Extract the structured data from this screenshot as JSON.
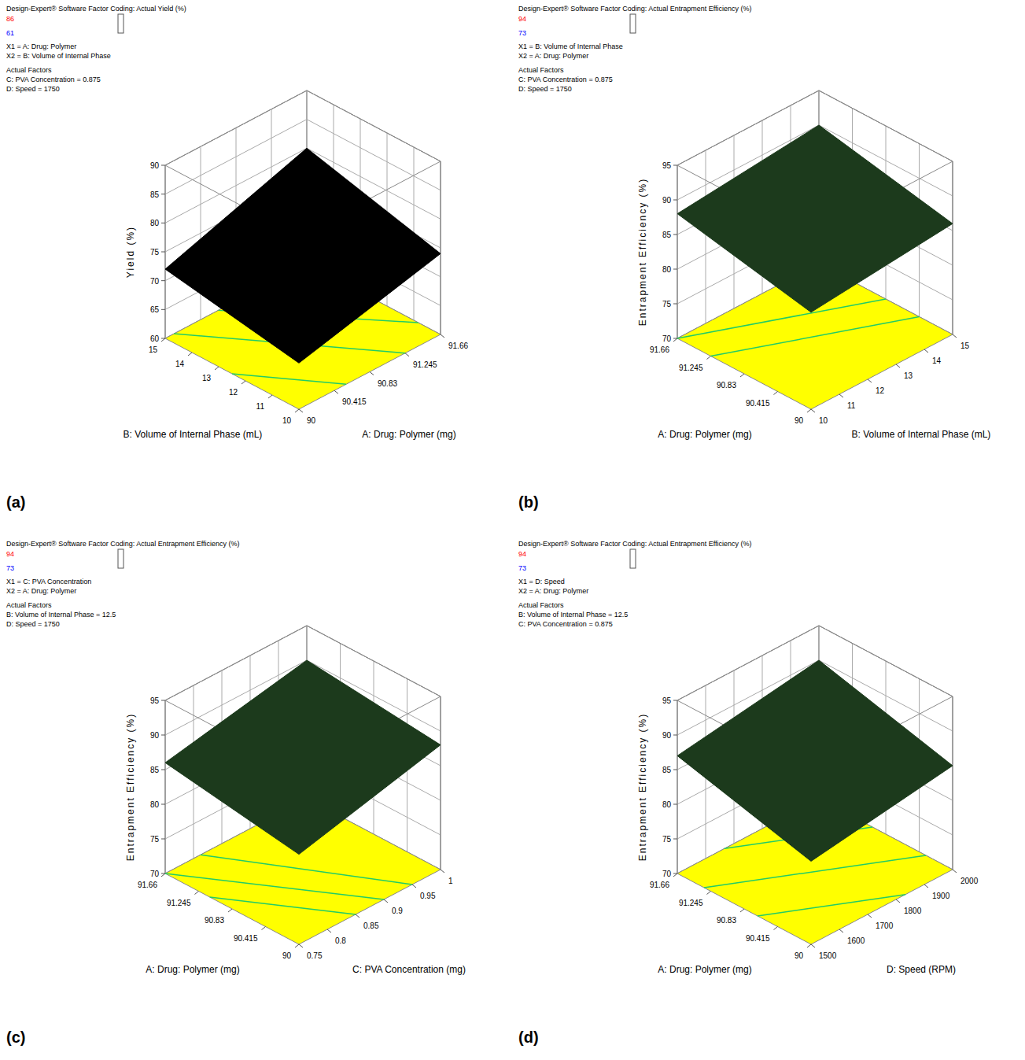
{
  "chart_data": [
    {
      "type": "surface",
      "panel": "(a)",
      "header": "Design-Expert® Software Factor Coding: Actual Yield (%)",
      "colorbar": {
        "max": 86,
        "min": 61
      },
      "x1": "X1 = A: Drug: Polymer",
      "x2": "X2 = B: Volume of Internal Phase",
      "actual_factors_title": "Actual Factors",
      "actual_factors": [
        "C: PVA Concentration = 0.875",
        "D: Speed = 1750"
      ],
      "xlabel": "A: Drug: Polymer (mg)",
      "ylabel": "B: Volume of Internal Phase (mL)",
      "zlabel": "Yield (%)",
      "xlim": [
        90,
        91.66
      ],
      "xticks": [
        90,
        90.415,
        90.83,
        91.245,
        91.66
      ],
      "ylim": [
        10,
        15
      ],
      "yticks": [
        10,
        11,
        12,
        13,
        14,
        15
      ],
      "zlim": [
        60,
        90
      ],
      "zticks": [
        60,
        65,
        70,
        75,
        80,
        85,
        90
      ],
      "surface": {
        "x": [
          90,
          91.66
        ],
        "y": [
          10,
          15
        ],
        "z": [
          [
            68,
            72
          ],
          [
            74,
            80
          ]
        ]
      },
      "contours": [
        70,
        72.5,
        75,
        77.5
      ],
      "color": "#000000",
      "grid": true
    },
    {
      "type": "surface",
      "panel": "(b)",
      "header": "Design-Expert® Software Factor Coding: Actual Entrapment Efficiency (%)",
      "colorbar": {
        "max": 94,
        "min": 73
      },
      "x1": "X1 = B: Volume of Internal Phase",
      "x2": "X2 = A: Drug: Polymer",
      "actual_factors_title": "Actual Factors",
      "actual_factors": [
        "C: PVA Concentration = 0.875",
        "D: Speed = 1750"
      ],
      "xlabel": "B: Volume of Internal Phase (mL)",
      "ylabel": "A: Drug: Polymer (mg)",
      "zlabel": "Entrapment Efficiency (%)",
      "xlim": [
        10,
        15
      ],
      "xticks": [
        10,
        11,
        12,
        13,
        14,
        15
      ],
      "ylim": [
        90,
        91.66
      ],
      "yticks": [
        90,
        90.415,
        90.83,
        91.245,
        91.66
      ],
      "zlim": [
        70,
        95
      ],
      "zticks": [
        70,
        75,
        80,
        85,
        90,
        95
      ],
      "surface": {
        "x": [
          10,
          15
        ],
        "y": [
          90,
          91.66
        ],
        "z": [
          [
            84,
            88
          ],
          [
            86,
            90
          ]
        ]
      },
      "contours": [
        86,
        87,
        88
      ],
      "color": "#1c3a1c",
      "grid": true
    },
    {
      "type": "surface",
      "panel": "(c)",
      "header": "Design-Expert® Software Factor Coding: Actual Entrapment Efficiency (%)",
      "colorbar": {
        "max": 94,
        "min": 73
      },
      "x1": "X1 = C: PVA Concentration",
      "x2": "X2 = A: Drug: Polymer",
      "actual_factors_title": "Actual Factors",
      "actual_factors": [
        "B: Volume of Internal Phase = 12.5",
        "D: Speed = 1750"
      ],
      "xlabel": "C: PVA Concentration (mg)",
      "ylabel": "A: Drug: Polymer (mg)",
      "zlabel": "Entrapment Efficiency (%)",
      "xlim": [
        0.75,
        1
      ],
      "xticks": [
        0.75,
        0.8,
        0.85,
        0.9,
        0.95,
        1
      ],
      "ylim": [
        90,
        91.66
      ],
      "yticks": [
        90,
        90.415,
        90.83,
        91.245,
        91.66
      ],
      "zlim": [
        70,
        95
      ],
      "zticks": [
        70,
        75,
        80,
        85,
        90,
        95
      ],
      "surface": {
        "x": [
          0.75,
          1
        ],
        "y": [
          90,
          91.66
        ],
        "z": [
          [
            83,
            86
          ],
          [
            88,
            90
          ]
        ]
      },
      "contours": [
        85,
        86,
        87,
        88
      ],
      "color": "#1c3a1c",
      "grid": true
    },
    {
      "type": "surface",
      "panel": "(d)",
      "header": "Design-Expert® Software Factor Coding: Actual Entrapment Efficiency (%)",
      "colorbar": {
        "max": 94,
        "min": 73
      },
      "x1": "X1 = D: Speed",
      "x2": "X2 = A: Drug: Polymer",
      "actual_factors_title": "Actual Factors",
      "actual_factors": [
        "B: Volume of Internal Phase = 12.5",
        "C: PVA Concentration = 0.875"
      ],
      "xlabel": "D: Speed (RPM)",
      "ylabel": "A: Drug: Polymer (mg)",
      "zlabel": "Entrapment Efficiency (%)",
      "xlim": [
        1500,
        2000
      ],
      "xticks": [
        1500,
        1600,
        1700,
        1800,
        1900,
        2000
      ],
      "ylim": [
        90,
        91.66
      ],
      "yticks": [
        90,
        90.415,
        90.83,
        91.245,
        91.66
      ],
      "zlim": [
        70,
        95
      ],
      "zticks": [
        70,
        75,
        80,
        85,
        90,
        95
      ],
      "surface": {
        "x": [
          1500,
          2000
        ],
        "y": [
          90,
          91.66
        ],
        "z": [
          [
            82,
            87
          ],
          [
            85,
            90
          ]
        ]
      },
      "contours": [
        84,
        86,
        88
      ],
      "color": "#1c3a1c",
      "grid": true
    }
  ]
}
